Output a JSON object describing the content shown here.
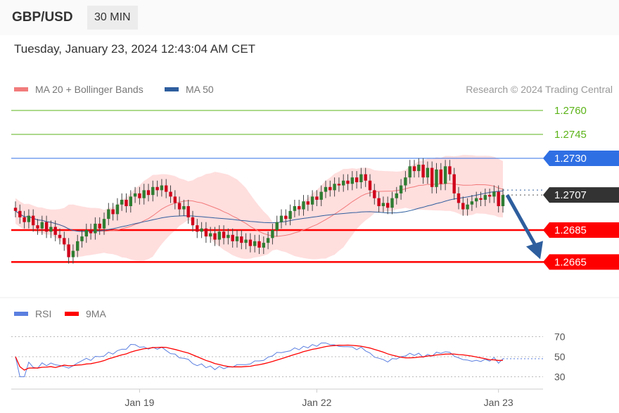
{
  "header": {
    "pair": "GBP/USD",
    "timeframe": "30 MIN",
    "datetime": "Tuesday, January 23, 2024 12:43:04 AM CET"
  },
  "legend": {
    "ma20": "MA 20 + Bollinger Bands",
    "ma50": "MA 50",
    "credit": "Research © 2024 Trading Central",
    "rsi": "RSI",
    "rsi_ma": "9MA"
  },
  "colors": {
    "ma20": "#f27b7b",
    "ma50": "#2e5e9e",
    "up": "#2e7d32",
    "down": "#d0021b",
    "band": "#ffd6d6",
    "resistance": "#5bb318",
    "pivot": "#2f6fe4",
    "support": "#ff0000",
    "last": "#333333",
    "arrow": "#2e5e9e",
    "rsi": "#5b7fe0",
    "rsi_ma": "#ff0000"
  },
  "chart_data": {
    "type": "candlestick",
    "levels": [
      {
        "label": "1.2760",
        "value": 1.276,
        "kind": "resistance"
      },
      {
        "label": "1.2745",
        "value": 1.2745,
        "kind": "resistance"
      },
      {
        "label": "1.2730",
        "value": 1.273,
        "kind": "pivot"
      },
      {
        "label": "1.2707",
        "value": 1.2707,
        "kind": "last"
      },
      {
        "label": "1.2685",
        "value": 1.2685,
        "kind": "support"
      },
      {
        "label": "1.2665",
        "value": 1.2665,
        "kind": "support"
      }
    ],
    "ylim": [
      1.265,
      1.277
    ],
    "closes": [
      1.2697,
      1.2693,
      1.269,
      1.2694,
      1.2688,
      1.2686,
      1.269,
      1.2684,
      1.2687,
      1.2682,
      1.268,
      1.2676,
      1.2668,
      1.2672,
      1.2678,
      1.2681,
      1.2685,
      1.2683,
      1.2689,
      1.2686,
      1.2692,
      1.2698,
      1.2695,
      1.2701,
      1.2704,
      1.27,
      1.2706,
      1.2708,
      1.2705,
      1.271,
      1.2707,
      1.2712,
      1.271,
      1.2713,
      1.2709,
      1.2706,
      1.2702,
      1.2698,
      1.27,
      1.2693,
      1.2688,
      1.2684,
      1.2686,
      1.2681,
      1.2683,
      1.2679,
      1.2684,
      1.268,
      1.2682,
      1.2678,
      1.2681,
      1.2677,
      1.2679,
      1.2675,
      1.2678,
      1.2674,
      1.2677,
      1.268,
      1.2685,
      1.269,
      1.2694,
      1.2692,
      1.2697,
      1.27,
      1.2698,
      1.2703,
      1.2701,
      1.2706,
      1.2704,
      1.2709,
      1.2712,
      1.271,
      1.2714,
      1.2713,
      1.2716,
      1.2714,
      1.2718,
      1.2715,
      1.272,
      1.2716,
      1.271,
      1.2705,
      1.27,
      1.2702,
      1.2699,
      1.2705,
      1.2708,
      1.2713,
      1.2718,
      1.2725,
      1.2722,
      1.2726,
      1.2718,
      1.2724,
      1.2712,
      1.2723,
      1.2714,
      1.2725,
      1.272,
      1.2708,
      1.2702,
      1.2698,
      1.2701,
      1.2703,
      1.2705,
      1.2704,
      1.2707,
      1.2706,
      1.2709,
      1.27,
      1.2707
    ],
    "target": 1.2665,
    "xticks": [
      {
        "label": "Jan 19",
        "index": 28
      },
      {
        "label": "Jan 22",
        "index": 68
      },
      {
        "label": "Jan 23",
        "index": 109
      }
    ],
    "rsi_ticks": [
      {
        "label": "70",
        "value": 70
      },
      {
        "label": "50",
        "value": 50
      },
      {
        "label": "30",
        "value": 30
      }
    ]
  }
}
